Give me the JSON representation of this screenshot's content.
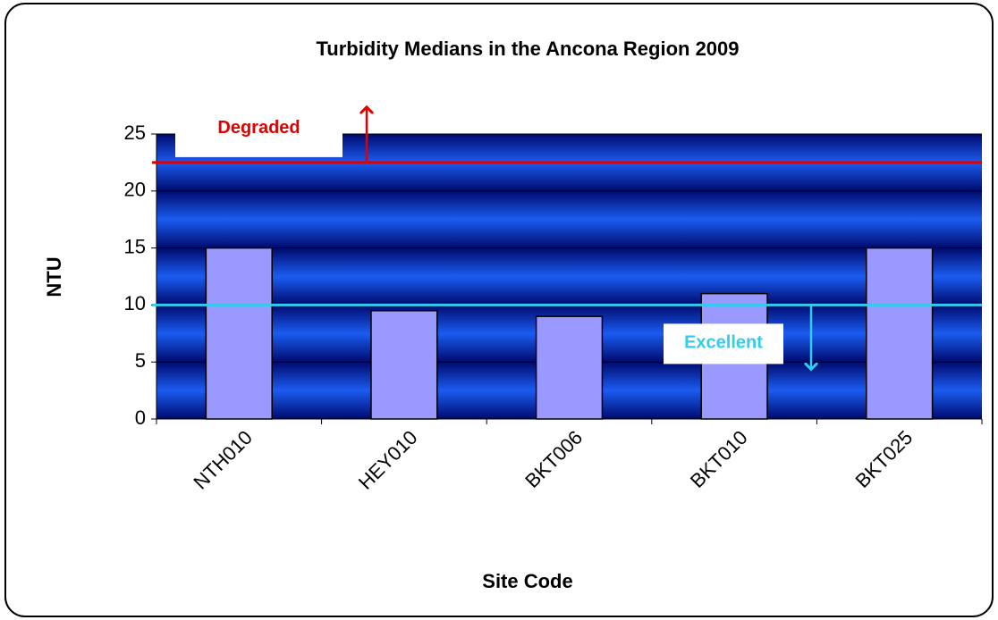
{
  "chart_data": {
    "type": "bar",
    "title": "Turbidity Medians in the Ancona Region 2009",
    "x_label": "Site Code",
    "y_label": "NTU",
    "categories": [
      "NTH010",
      "HEY010",
      "BKT006",
      "BKT010",
      "BKT025"
    ],
    "values": [
      15,
      9.5,
      9,
      11,
      15
    ],
    "color": "#9999ff",
    "ylim": [
      0,
      25
    ],
    "yticks": [
      0,
      5,
      10,
      15,
      20,
      25
    ],
    "grid": true,
    "thresholds": [
      {
        "name": "Degraded",
        "value": 22.5,
        "color": "#e00000",
        "direction": "up"
      },
      {
        "name": "Excellent",
        "value": 10,
        "color": "#33ccee",
        "direction": "down"
      }
    ]
  }
}
